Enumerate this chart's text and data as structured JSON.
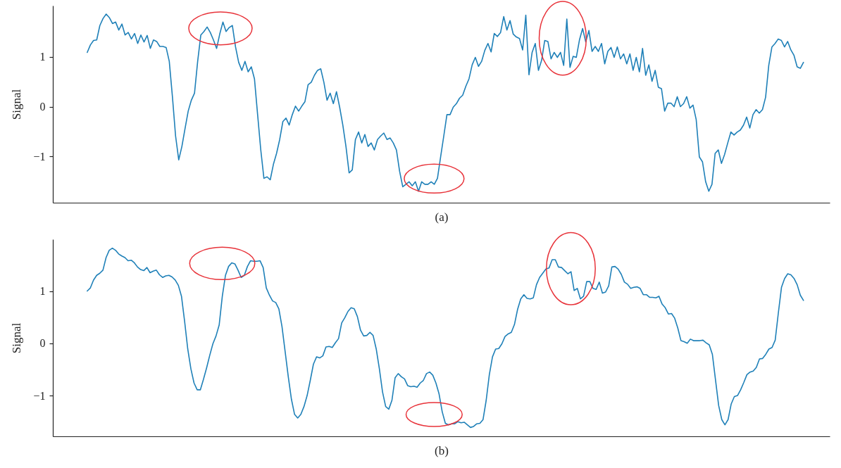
{
  "chart_data": [
    {
      "type": "line",
      "xlabel": "(a)",
      "ylabel": "Signal",
      "ylim": [
        -1.93,
        2.03
      ],
      "categories": [
        null,
        null,
        null,
        null,
        null,
        null,
        null,
        null,
        null,
        null,
        null,
        null,
        null,
        null,
        null,
        null,
        null,
        null,
        null,
        null,
        null,
        null,
        null,
        null,
        null,
        null,
        null,
        null,
        null,
        null,
        null,
        null,
        null,
        null,
        null,
        null,
        null,
        null,
        null,
        null,
        null,
        null,
        null,
        null,
        null,
        null,
        null,
        null,
        null,
        null,
        null,
        null,
        null,
        null,
        null,
        null,
        null,
        null,
        null,
        null,
        null,
        null,
        null,
        null,
        null,
        null,
        null,
        null,
        null,
        null,
        null,
        null,
        null,
        null,
        null,
        null,
        null,
        null,
        null,
        null,
        null,
        null,
        null,
        null,
        null,
        null,
        null,
        null,
        null,
        null,
        null,
        null,
        null,
        null,
        null,
        null,
        null,
        null,
        null,
        null,
        null,
        null,
        null,
        null,
        null,
        null,
        null,
        null,
        null,
        null,
        null,
        null,
        null,
        null,
        null,
        null,
        null,
        null,
        null,
        null,
        null,
        null,
        null,
        null,
        null,
        null,
        null,
        null,
        null,
        null,
        null,
        null,
        null,
        null,
        null,
        null,
        null,
        null,
        null,
        null,
        null,
        null,
        null,
        null,
        null,
        null,
        null,
        null,
        null,
        null,
        null,
        null,
        null,
        null,
        null,
        null,
        null,
        null,
        null,
        null,
        null,
        null,
        null,
        null,
        null,
        null,
        null,
        null,
        null,
        null,
        null,
        null,
        null,
        null,
        null,
        null,
        null,
        null,
        null,
        null,
        null,
        null,
        null,
        null,
        null,
        null,
        null,
        null,
        null,
        null,
        null,
        null,
        null,
        null,
        null,
        null,
        null,
        null,
        null,
        null,
        null,
        null,
        null,
        null,
        null,
        null,
        null,
        null,
        null,
        null,
        null,
        null,
        null,
        null,
        null,
        null,
        null,
        null,
        null,
        null,
        null,
        null,
        null,
        null,
        null,
        null,
        null,
        null
      ],
      "yticks": [
        {
          "value": -1,
          "label": "−1"
        },
        {
          "value": 0,
          "label": "0"
        },
        {
          "value": 1,
          "label": "1"
        }
      ],
      "tick_labels": "y",
      "grid": false,
      "line_style": "solid",
      "series": [
        {
          "color": "#1f80b8",
          "values": [
            1.09,
            1.24,
            1.33,
            1.34,
            1.63,
            1.77,
            1.86,
            1.79,
            1.67,
            1.7,
            1.54,
            1.66,
            1.44,
            1.49,
            1.36,
            1.47,
            1.27,
            1.44,
            1.3,
            1.43,
            1.17,
            1.34,
            1.31,
            1.21,
            1.21,
            1.19,
            0.91,
            0.2,
            -0.59,
            -1.07,
            -0.8,
            -0.44,
            -0.09,
            0.13,
            0.27,
            0.91,
            1.44,
            1.51,
            1.6,
            1.49,
            1.34,
            1.17,
            1.46,
            1.7,
            1.51,
            1.59,
            1.63,
            1.2,
            0.89,
            0.73,
            0.91,
            0.7,
            0.8,
            0.56,
            -0.16,
            -0.87,
            -1.44,
            -1.41,
            -1.47,
            -1.16,
            -0.94,
            -0.66,
            -0.3,
            -0.23,
            -0.37,
            -0.16,
            0.01,
            -0.09,
            0.01,
            0.1,
            0.44,
            0.49,
            0.63,
            0.73,
            0.76,
            0.49,
            0.13,
            0.27,
            0.06,
            0.3,
            -0.01,
            -0.37,
            -0.8,
            -1.33,
            -1.27,
            -0.66,
            -0.51,
            -0.73,
            -0.56,
            -0.8,
            -0.73,
            -0.87,
            -0.66,
            -0.59,
            -0.53,
            -0.66,
            -0.63,
            -0.73,
            -0.87,
            -1.3,
            -1.61,
            -1.56,
            -1.51,
            -1.59,
            -1.51,
            -1.7,
            -1.51,
            -1.56,
            -1.56,
            -1.51,
            -1.56,
            -1.44,
            -1.01,
            -0.59,
            -0.16,
            -0.16,
            -0.01,
            0.06,
            0.17,
            0.23,
            0.41,
            0.56,
            0.84,
            0.99,
            0.81,
            0.91,
            1.13,
            1.27,
            1.1,
            1.47,
            1.41,
            1.49,
            1.81,
            1.54,
            1.73,
            1.46,
            1.4,
            1.37,
            1.14,
            1.84,
            0.64,
            1.09,
            1.27,
            0.73,
            0.93,
            1.33,
            1.31,
            0.96,
            1.09,
            0.99,
            1.09,
            0.83,
            1.76,
            0.79,
            1.01,
            0.99,
            1.34,
            1.57,
            1.3,
            1.53,
            1.11,
            1.21,
            1.11,
            1.27,
            0.86,
            1.11,
            1.19,
            0.99,
            1.2,
            0.96,
            1.06,
            0.86,
            1.06,
            0.73,
            0.99,
            0.7,
            1.17,
            0.63,
            0.84,
            0.51,
            0.73,
            0.39,
            0.36,
            -0.09,
            0.07,
            0.07,
            0.0,
            0.2,
            0.0,
            0.06,
            0.2,
            -0.03,
            0.03,
            -0.26,
            -1.01,
            -1.11,
            -1.51,
            -1.7,
            -1.56,
            -0.94,
            -0.87,
            -1.14,
            -0.96,
            -0.73,
            -0.51,
            -0.57,
            -0.51,
            -0.47,
            -0.37,
            -0.21,
            -0.43,
            -0.16,
            -0.06,
            -0.13,
            -0.06,
            0.19,
            0.83,
            1.2,
            1.27,
            1.36,
            1.33,
            1.2,
            1.31,
            1.14,
            1.03,
            0.8,
            0.77,
            0.89
          ]
        }
      ]
    },
    {
      "type": "line",
      "xlabel": "(b)",
      "ylabel": "Signal",
      "ylim": [
        -1.78,
        1.99
      ],
      "categories": [
        null,
        null,
        null,
        null,
        null,
        null,
        null,
        null,
        null,
        null,
        null,
        null,
        null,
        null,
        null,
        null,
        null,
        null,
        null,
        null,
        null,
        null,
        null,
        null,
        null,
        null,
        null,
        null,
        null,
        null,
        null,
        null,
        null,
        null,
        null,
        null,
        null,
        null,
        null,
        null,
        null,
        null,
        null,
        null,
        null,
        null,
        null,
        null,
        null,
        null,
        null,
        null,
        null,
        null,
        null,
        null,
        null,
        null,
        null,
        null,
        null,
        null,
        null,
        null,
        null,
        null,
        null,
        null,
        null,
        null,
        null,
        null,
        null,
        null,
        null,
        null,
        null,
        null,
        null,
        null,
        null,
        null,
        null,
        null,
        null,
        null,
        null,
        null,
        null,
        null,
        null,
        null,
        null,
        null,
        null,
        null,
        null,
        null,
        null,
        null,
        null,
        null,
        null,
        null,
        null,
        null,
        null,
        null,
        null,
        null,
        null,
        null,
        null,
        null,
        null,
        null,
        null,
        null,
        null,
        null,
        null,
        null,
        null,
        null,
        null,
        null,
        null,
        null,
        null,
        null,
        null,
        null,
        null,
        null,
        null,
        null,
        null,
        null,
        null,
        null,
        null,
        null,
        null,
        null,
        null,
        null,
        null,
        null,
        null,
        null,
        null,
        null,
        null,
        null,
        null,
        null,
        null,
        null,
        null,
        null,
        null,
        null,
        null,
        null,
        null,
        null,
        null,
        null,
        null,
        null,
        null,
        null,
        null,
        null,
        null,
        null,
        null,
        null,
        null,
        null,
        null,
        null,
        null,
        null,
        null,
        null,
        null,
        null,
        null,
        null,
        null,
        null,
        null,
        null,
        null,
        null,
        null,
        null,
        null,
        null,
        null,
        null,
        null,
        null,
        null,
        null,
        null,
        null,
        null,
        null,
        null,
        null,
        null,
        null,
        null,
        null,
        null,
        null,
        null,
        null,
        null,
        null,
        null,
        null,
        null,
        null,
        null,
        null,
        null
      ],
      "yticks": [
        {
          "value": -1,
          "label": "−1"
        },
        {
          "value": 0,
          "label": "0"
        },
        {
          "value": 1,
          "label": "1"
        }
      ],
      "tick_labels": "y",
      "grid": false,
      "line_style": "solid",
      "series": [
        {
          "color": "#1f80b8",
          "values": [
            1.0,
            1.06,
            1.21,
            1.3,
            1.34,
            1.4,
            1.64,
            1.78,
            1.82,
            1.78,
            1.71,
            1.67,
            1.64,
            1.58,
            1.59,
            1.54,
            1.46,
            1.41,
            1.39,
            1.45,
            1.35,
            1.38,
            1.4,
            1.31,
            1.26,
            1.29,
            1.3,
            1.27,
            1.21,
            1.11,
            0.9,
            0.42,
            -0.11,
            -0.49,
            -0.76,
            -0.89,
            -0.89,
            -0.69,
            -0.47,
            -0.23,
            -0.01,
            0.14,
            0.35,
            0.9,
            1.3,
            1.47,
            1.54,
            1.52,
            1.4,
            1.26,
            1.3,
            1.47,
            1.58,
            1.57,
            1.57,
            1.58,
            1.45,
            1.06,
            0.92,
            0.81,
            0.78,
            0.66,
            0.32,
            -0.16,
            -0.64,
            -1.07,
            -1.36,
            -1.43,
            -1.36,
            -1.21,
            -1.0,
            -0.71,
            -0.4,
            -0.26,
            -0.28,
            -0.24,
            -0.07,
            -0.06,
            -0.08,
            0.01,
            0.09,
            0.39,
            0.49,
            0.61,
            0.68,
            0.66,
            0.51,
            0.25,
            0.14,
            0.15,
            0.21,
            0.15,
            -0.11,
            -0.49,
            -0.93,
            -1.21,
            -1.26,
            -1.09,
            -0.66,
            -0.58,
            -0.64,
            -0.68,
            -0.81,
            -0.83,
            -0.82,
            -0.84,
            -0.76,
            -0.71,
            -0.58,
            -0.55,
            -0.61,
            -0.76,
            -0.97,
            -1.31,
            -1.53,
            -1.56,
            -1.54,
            -1.54,
            -1.5,
            -1.52,
            -1.51,
            -1.56,
            -1.61,
            -1.59,
            -1.54,
            -1.53,
            -1.46,
            -1.09,
            -0.6,
            -0.26,
            -0.11,
            -0.1,
            -0.01,
            0.13,
            0.18,
            0.21,
            0.36,
            0.65,
            0.85,
            0.93,
            0.86,
            0.85,
            0.87,
            1.12,
            1.26,
            1.34,
            1.42,
            1.44,
            1.6,
            1.6,
            1.46,
            1.45,
            1.39,
            1.33,
            1.37,
            1.01,
            1.05,
            0.85,
            0.9,
            1.18,
            1.18,
            1.05,
            1.03,
            1.17,
            0.96,
            0.98,
            1.1,
            1.46,
            1.47,
            1.42,
            1.32,
            1.17,
            1.13,
            1.05,
            1.07,
            1.08,
            1.05,
            0.93,
            0.93,
            0.88,
            0.88,
            0.87,
            0.9,
            0.75,
            0.68,
            0.56,
            0.57,
            0.48,
            0.29,
            0.05,
            0.03,
            0.0,
            0.08,
            0.05,
            0.05,
            0.05,
            0.06,
            0.01,
            -0.03,
            -0.21,
            -0.7,
            -1.19,
            -1.46,
            -1.56,
            -1.46,
            -1.16,
            -1.02,
            -1.0,
            -0.89,
            -0.75,
            -0.6,
            -0.55,
            -0.53,
            -0.46,
            -0.3,
            -0.29,
            -0.21,
            -0.11,
            -0.08,
            0.06,
            0.58,
            1.07,
            1.24,
            1.33,
            1.31,
            1.24,
            1.12,
            0.92,
            0.82
          ]
        }
      ]
    }
  ]
}
